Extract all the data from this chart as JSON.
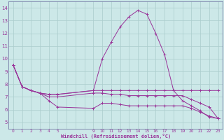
{
  "bg_color": "#cce8e8",
  "grid_color": "#aacccc",
  "line_color": "#993399",
  "spine_color": "#666699",
  "series1_x": [
    0,
    1,
    2,
    3,
    4,
    5,
    9,
    10,
    11,
    12,
    13,
    14,
    15,
    16,
    17,
    18,
    19,
    20,
    21,
    22,
    23
  ],
  "series1_y": [
    9.5,
    7.8,
    7.5,
    7.3,
    7.2,
    7.2,
    7.5,
    10.0,
    11.3,
    12.5,
    13.3,
    13.8,
    13.5,
    12.0,
    10.3,
    7.5,
    6.7,
    6.3,
    5.9,
    5.4,
    5.3
  ],
  "series2_x": [
    0,
    1,
    2,
    3,
    4,
    5,
    9,
    10,
    11,
    12,
    13,
    14,
    15,
    16,
    17,
    18,
    19,
    20,
    21,
    22,
    23
  ],
  "series2_y": [
    9.5,
    7.8,
    7.5,
    7.3,
    7.2,
    7.2,
    7.5,
    7.5,
    7.5,
    7.5,
    7.5,
    7.5,
    7.5,
    7.5,
    7.5,
    7.5,
    7.5,
    7.5,
    7.5,
    7.5,
    7.5
  ],
  "series3_x": [
    0,
    1,
    2,
    3,
    4,
    5,
    9,
    10,
    11,
    12,
    13,
    14,
    15,
    16,
    17,
    18,
    19,
    20,
    21,
    22,
    23
  ],
  "series3_y": [
    9.5,
    7.8,
    7.5,
    7.3,
    6.7,
    6.2,
    6.1,
    6.5,
    6.5,
    6.4,
    6.3,
    6.3,
    6.3,
    6.3,
    6.3,
    6.3,
    6.3,
    6.1,
    5.8,
    5.5,
    5.3
  ],
  "series4_x": [
    0,
    1,
    2,
    3,
    4,
    5,
    9,
    10,
    11,
    12,
    13,
    14,
    15,
    16,
    17,
    18,
    19,
    20,
    21,
    22,
    23
  ],
  "series4_y": [
    9.5,
    7.8,
    7.5,
    7.3,
    7.0,
    7.0,
    7.3,
    7.3,
    7.2,
    7.2,
    7.1,
    7.1,
    7.1,
    7.1,
    7.1,
    7.1,
    7.1,
    6.8,
    6.5,
    6.2,
    5.3
  ],
  "ylim": [
    4.5,
    14.5
  ],
  "yticks": [
    5,
    6,
    7,
    8,
    9,
    10,
    11,
    12,
    13,
    14
  ],
  "xlim": [
    -0.5,
    23.5
  ],
  "xlabel": "Windchill (Refroidissement éolien,°C)",
  "figsize": [
    3.2,
    2.0
  ],
  "dpi": 100
}
